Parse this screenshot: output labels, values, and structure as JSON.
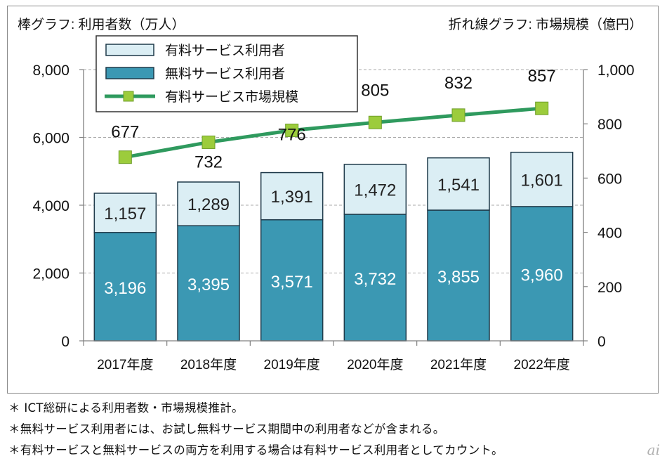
{
  "chart_data": {
    "type": "bar",
    "left_axis_title": "棒グラフ: 利用者数（万人）",
    "right_axis_title": "折れ線グラフ: 市場規模（億円）",
    "categories": [
      "2017年度",
      "2018年度",
      "2019年度",
      "2020年度",
      "2021年度",
      "2022年度"
    ],
    "series": [
      {
        "name": "無料サービス利用者",
        "kind": "stacked-bar",
        "axis": "left",
        "values": [
          3196,
          3395,
          3571,
          3732,
          3855,
          3960
        ],
        "labels": [
          "3,196",
          "3,395",
          "3,571",
          "3,732",
          "3,855",
          "3,960"
        ],
        "color": "#3b98b3"
      },
      {
        "name": "有料サービス利用者",
        "kind": "stacked-bar",
        "axis": "left",
        "values": [
          1157,
          1289,
          1391,
          1472,
          1541,
          1601
        ],
        "labels": [
          "1,157",
          "1,289",
          "1,391",
          "1,472",
          "1,541",
          "1,601"
        ],
        "color": "#dbeef4"
      },
      {
        "name": "有料サービス市場規模",
        "kind": "line",
        "axis": "right",
        "values": [
          677,
          732,
          776,
          805,
          832,
          857
        ],
        "labels": [
          "677",
          "732",
          "776",
          "805",
          "832",
          "857"
        ],
        "color": "#2f9a5e",
        "marker_color": "#9ccc3c"
      }
    ],
    "left_axis": {
      "min": 0,
      "max": 8000,
      "ticks": [
        0,
        2000,
        4000,
        6000,
        8000
      ],
      "tick_labels": [
        "0",
        "2,000",
        "4,000",
        "6,000",
        "8,000"
      ]
    },
    "right_axis": {
      "min": 0,
      "max": 1000,
      "ticks": [
        0,
        200,
        400,
        600,
        800,
        1000
      ],
      "tick_labels": [
        "0",
        "200",
        "400",
        "600",
        "800",
        "1,000"
      ]
    },
    "legend": {
      "placement": "top-left",
      "items": [
        "有料サービス利用者",
        "無料サービス利用者",
        "有料サービス市場規模"
      ]
    },
    "grid": true
  },
  "notes": [
    "＊ ICT総研による利用者数・市場規模推計。",
    "＊無料サービス利用者には、お試し無料サービス期間中の利用者などが含まれる。",
    "＊有料サービスと無料サービスの両方を利用する場合は有料サービス利用者としてカウント。"
  ],
  "watermark": "ai"
}
